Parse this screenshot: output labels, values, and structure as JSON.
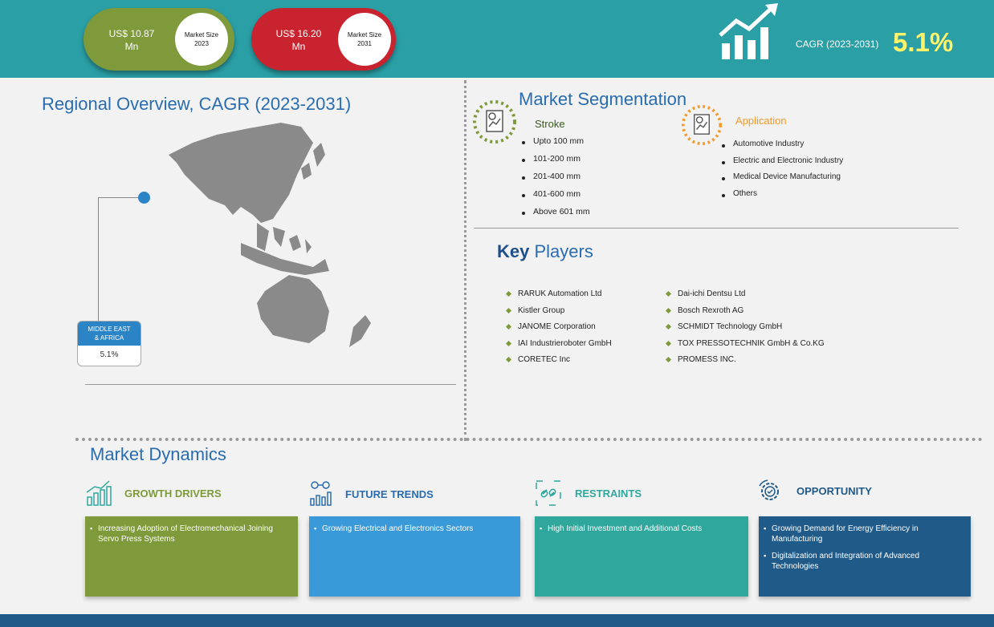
{
  "header": {
    "pill_2023": {
      "value": "US$ 10.87",
      "unit": "Mn",
      "label_line1": "Market Size",
      "label_line2": "2023",
      "color": "#7e9a3b"
    },
    "pill_2031": {
      "value": "US$ 16.20",
      "unit": "Mn",
      "label_line1": "Market Size",
      "label_line2": "2031",
      "color": "#c8232e"
    },
    "cagr_label": "CAGR (2023-2031)",
    "cagr_value": "5.1%",
    "background": "#2a9fa6"
  },
  "regional": {
    "title": "Regional Overview, CAGR (2023-2031)",
    "region_line1": "MIDDLE EAST",
    "region_line2": "& AFRICA",
    "region_value": "5.1%"
  },
  "segmentation": {
    "title": "Market Segmentation",
    "stroke": {
      "heading": "Stroke",
      "items": [
        "Upto 100 mm",
        "101-200 mm",
        "201-400 mm",
        "401-600 mm",
        "Above 601 mm"
      ]
    },
    "application": {
      "heading": "Application",
      "items": [
        "Automotive Industry",
        "Electric and Electronic Industry",
        "Medical Device Manufacturing",
        "Others"
      ]
    }
  },
  "key_players": {
    "title_bold": "Key",
    "title_rest": " Players",
    "col1": [
      "RARUK Automation Ltd",
      "Kistler Group",
      "JANOME Corporation",
      "IAI Industrieroboter GmbH",
      "CORETEC Inc"
    ],
    "col2": [
      "Dai-ichi Dentsu Ltd",
      "Bosch Rexroth AG",
      "SCHMIDT Technology GmbH",
      "TOX PRESSOTECHNIK GmbH & Co.KG",
      "PROMESS INC."
    ]
  },
  "dynamics": {
    "title": "Market Dynamics",
    "growth_drivers": {
      "heading": "GROWTH DRIVERS",
      "items": [
        "Increasing Adoption of Electromechanical Joining Servo Press Systems"
      ],
      "color": "#7e9a3b"
    },
    "future_trends": {
      "heading": "FUTURE TRENDS",
      "items": [
        "Growing Electrical and Electronics Sectors"
      ],
      "color": "#3a9ad9"
    },
    "restraints": {
      "heading": "RESTRAINTS",
      "items": [
        "High Initial Investment and Additional Costs"
      ],
      "color": "#2fa79c"
    },
    "opportunity": {
      "heading": "OPPORTUNITY",
      "items": [
        "Growing Demand for Energy Efficiency in Manufacturing",
        "Digitalization and Integration of Advanced Technologies"
      ],
      "color": "#1f5a88"
    }
  },
  "icons": [
    "bar-chart-arrow-icon",
    "asia-pacific-map-icon",
    "report-chart-icon",
    "growth-bars-icon",
    "trend-analytics-icon",
    "broken-link-icon",
    "gear-check-icon"
  ]
}
